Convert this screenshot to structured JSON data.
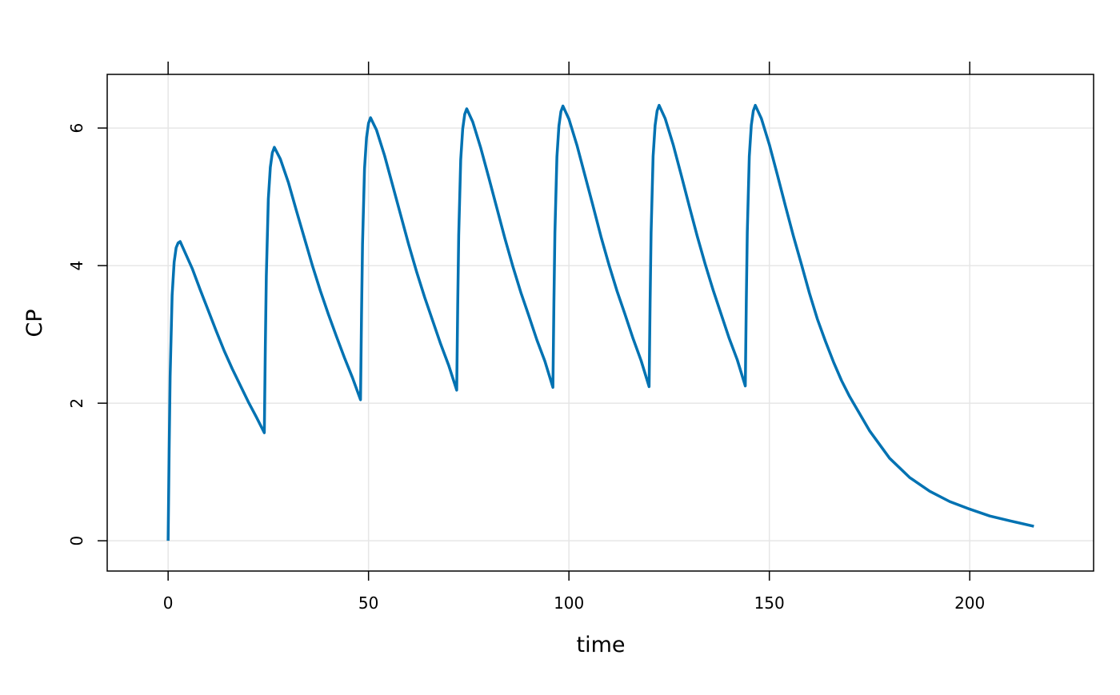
{
  "chart_data": {
    "type": "line",
    "xlabel": "time",
    "ylabel": "CP",
    "xlim": [
      -15.2,
      230.9
    ],
    "ylim": [
      -0.44,
      6.78
    ],
    "xticks": [
      0,
      50,
      100,
      150,
      200
    ],
    "yticks": [
      0,
      2,
      4,
      6
    ],
    "grid": true,
    "x": [
      0,
      0.25,
      0.5,
      1,
      1.5,
      2,
      2.5,
      3,
      4,
      6,
      8,
      10,
      12,
      14,
      16,
      18,
      20,
      22,
      24,
      24.25,
      24.5,
      25,
      25.5,
      26,
      26.5,
      28,
      30,
      32,
      34,
      36,
      38,
      40,
      42,
      44,
      46,
      48,
      48.25,
      48.5,
      49,
      49.5,
      50,
      50.5,
      52,
      54,
      56,
      58,
      60,
      62,
      64,
      66,
      68,
      70,
      72,
      72.25,
      72.5,
      73,
      73.5,
      74,
      74.5,
      76,
      78,
      80,
      82,
      84,
      86,
      88,
      90,
      92,
      94,
      96,
      96.25,
      96.5,
      97,
      97.5,
      98,
      98.5,
      100,
      102,
      104,
      106,
      108,
      110,
      112,
      114,
      116,
      118,
      120,
      120.25,
      120.5,
      121,
      121.5,
      122,
      122.5,
      124,
      126,
      128,
      130,
      132,
      134,
      136,
      138,
      140,
      142,
      144,
      144.25,
      144.5,
      145,
      145.5,
      146,
      146.5,
      148,
      150,
      152,
      154,
      156,
      158,
      160,
      162,
      164,
      166,
      168,
      170,
      175,
      180,
      185,
      190,
      195,
      200,
      205,
      210,
      216
    ],
    "series": [
      {
        "color": "#0072b2",
        "values": [
          0,
          1.3,
          2.39,
          3.57,
          4.05,
          4.26,
          4.33,
          4.35,
          4.22,
          3.96,
          3.65,
          3.35,
          3.05,
          2.76,
          2.5,
          2.26,
          2.02,
          1.8,
          1.57,
          2.82,
          3.85,
          4.97,
          5.43,
          5.64,
          5.72,
          5.55,
          5.21,
          4.8,
          4.4,
          4.0,
          3.63,
          3.29,
          2.97,
          2.66,
          2.37,
          2.05,
          3.28,
          4.31,
          5.41,
          5.86,
          6.07,
          6.15,
          5.97,
          5.6,
          5.17,
          4.74,
          4.31,
          3.91,
          3.54,
          3.2,
          2.86,
          2.55,
          2.19,
          3.42,
          4.44,
          5.54,
          5.99,
          6.2,
          6.28,
          6.09,
          5.71,
          5.28,
          4.84,
          4.4,
          3.99,
          3.61,
          3.27,
          2.92,
          2.61,
          2.23,
          3.46,
          4.48,
          5.58,
          6.03,
          6.24,
          6.32,
          6.13,
          5.75,
          5.31,
          4.87,
          4.42,
          4.01,
          3.63,
          3.29,
          2.94,
          2.62,
          2.24,
          3.46,
          4.48,
          5.59,
          6.04,
          6.25,
          6.33,
          6.14,
          5.76,
          5.32,
          4.87,
          4.43,
          4.02,
          3.64,
          3.29,
          2.94,
          2.63,
          2.25,
          3.47,
          4.49,
          5.59,
          6.04,
          6.25,
          6.33,
          6.14,
          5.76,
          5.32,
          4.87,
          4.43,
          4.02,
          3.6,
          3.22,
          2.9,
          2.6,
          2.33,
          2.1,
          1.6,
          1.2,
          0.92,
          0.72,
          0.57,
          0.46,
          0.36,
          0.29,
          0.21
        ]
      }
    ]
  }
}
